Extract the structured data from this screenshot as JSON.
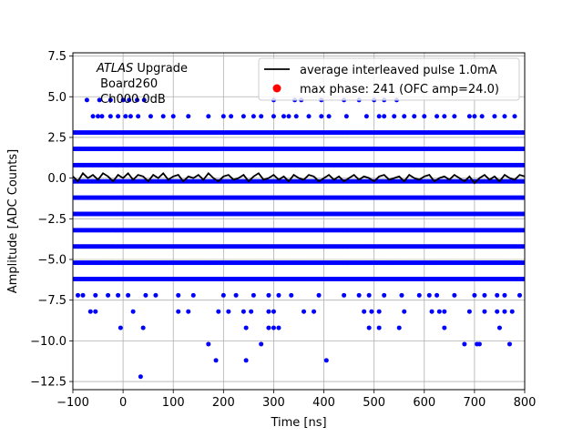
{
  "chart_data": {
    "type": "scatter",
    "xlabel": "Time [ns]",
    "ylabel": "Amplitude [ADC Counts]",
    "xlim": [
      -100,
      800
    ],
    "ylim": [
      -13,
      7.7
    ],
    "xticks": [
      -100,
      0,
      100,
      200,
      300,
      400,
      500,
      600,
      700,
      800
    ],
    "yticks": [
      -12.5,
      -10.0,
      -7.5,
      -5.0,
      -2.5,
      0.0,
      2.5,
      5.0,
      7.5
    ],
    "grid": true,
    "legend_position": "top-right",
    "annotation": {
      "line1_italic": "ATLAS",
      "line1_rest": " Upgrade",
      "line2": " Board260",
      "line3": " Ch000 0dB"
    },
    "series": [
      {
        "name": "average interleaved pulse 1.0mA",
        "kind": "line",
        "color": "#000000",
        "x": [
          -100,
          -90,
          -80,
          -70,
          -60,
          -50,
          -40,
          -30,
          -20,
          -10,
          0,
          10,
          20,
          30,
          40,
          50,
          60,
          70,
          80,
          90,
          100,
          110,
          120,
          130,
          140,
          150,
          160,
          170,
          180,
          190,
          200,
          210,
          220,
          230,
          240,
          250,
          260,
          270,
          280,
          290,
          300,
          310,
          320,
          330,
          340,
          350,
          360,
          370,
          380,
          390,
          400,
          410,
          420,
          430,
          440,
          450,
          460,
          470,
          480,
          490,
          500,
          510,
          520,
          530,
          540,
          550,
          560,
          570,
          580,
          590,
          600,
          610,
          620,
          630,
          640,
          650,
          660,
          670,
          680,
          690,
          700,
          710,
          720,
          730,
          740,
          750,
          760,
          770,
          780,
          790,
          800
        ],
        "y": [
          0.1,
          -0.2,
          0.3,
          0.0,
          0.2,
          -0.1,
          0.3,
          0.1,
          -0.2,
          0.2,
          0.0,
          0.3,
          -0.1,
          0.2,
          0.1,
          -0.2,
          0.2,
          0.0,
          0.3,
          -0.1,
          0.1,
          0.2,
          -0.2,
          0.1,
          0.0,
          0.2,
          -0.1,
          0.3,
          0.0,
          -0.2,
          0.1,
          0.2,
          -0.1,
          0.0,
          0.2,
          -0.2,
          0.1,
          0.3,
          -0.1,
          0.0,
          0.2,
          -0.1,
          0.1,
          -0.2,
          0.2,
          0.0,
          -0.1,
          0.2,
          0.1,
          -0.2,
          0.0,
          0.2,
          -0.1,
          0.1,
          -0.2,
          0.0,
          0.2,
          -0.1,
          0.1,
          0.0,
          -0.2,
          0.1,
          0.2,
          -0.1,
          0.0,
          0.1,
          -0.2,
          0.2,
          0.0,
          -0.1,
          0.1,
          0.2,
          -0.2,
          0.0,
          0.1,
          -0.1,
          0.2,
          0.0,
          -0.2,
          0.1,
          -0.3,
          0.0,
          0.2,
          -0.1,
          0.1,
          -0.2,
          0.2,
          0.0,
          -0.1,
          0.2,
          0.1
        ]
      },
      {
        "name": "max phase: 241 (OFC amp=24.0)",
        "kind": "marker",
        "color": "#ff0000",
        "x": [],
        "y": []
      },
      {
        "name": "",
        "kind": "scatter-bands",
        "color": "#0000ff",
        "dense_levels": [
          2.8,
          1.8,
          0.8,
          -0.2,
          -1.2,
          -2.2,
          -3.2,
          -4.2,
          -5.2,
          -6.2
        ],
        "sparse_points": {
          "y_4_8": [
            -72,
            -47,
            -25,
            0,
            12,
            28,
            42,
            300,
            342,
            355,
            395,
            440,
            470,
            500,
            520,
            545
          ],
          "y_3_8": [
            -60,
            -50,
            -42,
            -25,
            -10,
            5,
            15,
            30,
            55,
            80,
            100,
            130,
            170,
            200,
            215,
            240,
            260,
            275,
            300,
            320,
            330,
            345,
            370,
            395,
            410,
            445,
            485,
            510,
            520,
            540,
            560,
            580,
            600,
            625,
            640,
            660,
            690,
            700,
            715,
            740,
            760,
            780
          ],
          "y_m7_2": [
            -90,
            -80,
            -55,
            -30,
            -10,
            10,
            45,
            65,
            110,
            140,
            200,
            225,
            260,
            290,
            310,
            335,
            390,
            440,
            470,
            490,
            520,
            555,
            590,
            610,
            625,
            660,
            700,
            720,
            745,
            760,
            790
          ],
          "y_m8_2": [
            -65,
            -55,
            20,
            110,
            130,
            190,
            210,
            240,
            255,
            290,
            300,
            360,
            380,
            480,
            495,
            510,
            560,
            615,
            630,
            640,
            690,
            720,
            745,
            760,
            775
          ],
          "y_m9_2": [
            -5,
            40,
            245,
            290,
            300,
            310,
            490,
            510,
            550,
            640,
            750
          ],
          "y_m10_2": [
            170,
            275,
            680,
            705,
            710,
            770
          ],
          "y_m11_2": [
            185,
            245,
            405
          ],
          "y_m12_2": [
            35
          ]
        }
      }
    ]
  }
}
